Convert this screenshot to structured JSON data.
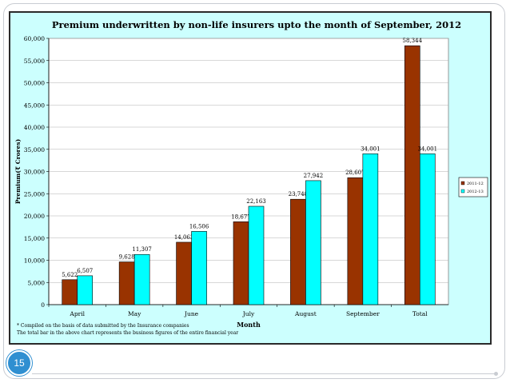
{
  "slide": {
    "number": "15"
  },
  "chart_data": {
    "type": "bar",
    "title": "Premium underwritten by non-life insurers upto the month of September, 2012",
    "xlabel": "Month",
    "ylabel": "Premium(₹ Crores)",
    "ylim": [
      0,
      60000
    ],
    "yticks": [
      "0",
      "5,000",
      "10,000",
      "15,000",
      "20,000",
      "25,000",
      "30,000",
      "35,000",
      "40,000",
      "45,000",
      "50,000",
      "55,000",
      "60,000"
    ],
    "categories": [
      "April",
      "May",
      "June",
      "July",
      "August",
      "September",
      "Total"
    ],
    "grid": true,
    "legend_position": "right",
    "series": [
      {
        "name": "2011-12",
        "color": "#993300",
        "values": [
          5622,
          9628,
          14063,
          18677,
          23748,
          28607,
          58344
        ],
        "labels": [
          "5,622",
          "9,628",
          "14,063",
          "18,677",
          "23,748",
          "28,607",
          "58,344"
        ]
      },
      {
        "name": "2012-13",
        "color": "#00ffff",
        "values": [
          6507,
          11307,
          16506,
          22163,
          27942,
          34001,
          34001
        ],
        "labels": [
          "6,507",
          "11,307",
          "16,506",
          "22,163",
          "27,942",
          "34,001",
          "34,001"
        ]
      }
    ],
    "footnotes": [
      "* Compiled on the basis of data submitted by the Insurance companies",
      "  The total bar in the above chart represents the  business figures of the entire financial year"
    ]
  }
}
